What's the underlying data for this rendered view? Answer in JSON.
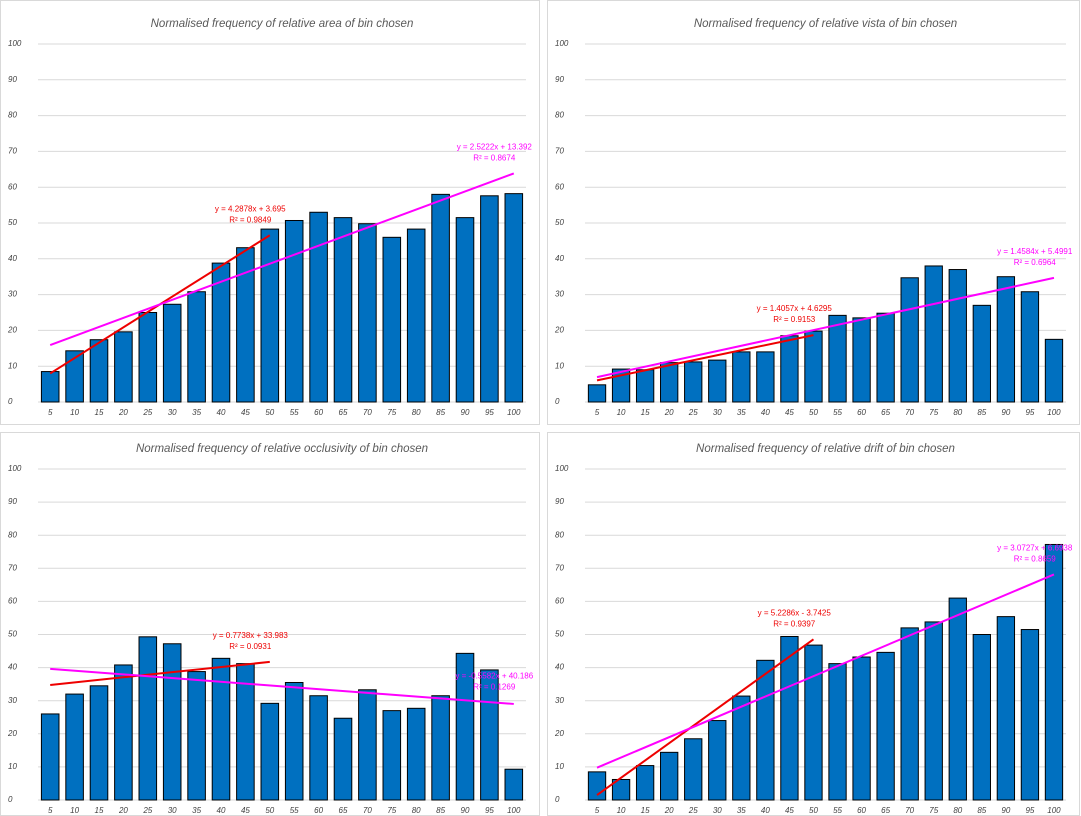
{
  "chart_data": [
    {
      "type": "bar",
      "title": "Normalised frequency of relative area of bin chosen",
      "categories": [
        "5",
        "10",
        "15",
        "20",
        "25",
        "30",
        "35",
        "40",
        "45",
        "50",
        "55",
        "60",
        "65",
        "70",
        "75",
        "80",
        "85",
        "90",
        "95",
        "100"
      ],
      "values": [
        8.5,
        14.3,
        17.4,
        19.6,
        25,
        27.3,
        30.8,
        38.8,
        43.1,
        48.3,
        50.7,
        53,
        51.5,
        49.8,
        46,
        48.3,
        58,
        51.5,
        57.6,
        58.2
      ],
      "color": "#0070c0",
      "ylim": [
        0,
        100
      ],
      "yticks": [
        0,
        10,
        20,
        30,
        40,
        50,
        60,
        70,
        80,
        90,
        100
      ],
      "grid": true,
      "trendlines": [
        {
          "color": "#ee0000",
          "slope": 4.2878,
          "intercept": 3.695,
          "span": [
            1,
            10
          ],
          "equation": "y = 4.2878x + 3.695",
          "r2": "R² = 0.9849"
        },
        {
          "color": "#ff00ff",
          "slope": 2.5222,
          "intercept": 13.392,
          "span": [
            1,
            20
          ],
          "equation": "y = 2.5222x + 13.392",
          "r2": "R² = 0.8674"
        }
      ]
    },
    {
      "type": "bar",
      "title": "Normalised frequency of relative vista of bin chosen",
      "categories": [
        "5",
        "10",
        "15",
        "20",
        "25",
        "30",
        "35",
        "40",
        "45",
        "50",
        "55",
        "60",
        "65",
        "70",
        "75",
        "80",
        "85",
        "90",
        "95",
        "100"
      ],
      "values": [
        4.8,
        9.2,
        9,
        11,
        11.2,
        11.7,
        14,
        14,
        18.5,
        19.8,
        24.2,
        23.5,
        24.8,
        34.7,
        38,
        37,
        27,
        35,
        30.8,
        17.5
      ],
      "color": "#0070c0",
      "ylim": [
        0,
        100
      ],
      "yticks": [
        0,
        10,
        20,
        30,
        40,
        50,
        60,
        70,
        80,
        90,
        100
      ],
      "grid": true,
      "trendlines": [
        {
          "color": "#ee0000",
          "slope": 1.4057,
          "intercept": 4.6295,
          "span": [
            1,
            10
          ],
          "equation": "y = 1.4057x + 4.6295",
          "r2": "R² = 0.9153"
        },
        {
          "color": "#ff00ff",
          "slope": 1.4584,
          "intercept": 5.4991,
          "span": [
            1,
            20
          ],
          "equation": "y = 1.4584x + 5.4991",
          "r2": "R² = 0.6964"
        }
      ]
    },
    {
      "type": "bar",
      "title": "Normalised frequency of relative occlusivity of bin chosen",
      "categories": [
        "5",
        "10",
        "15",
        "20",
        "25",
        "30",
        "35",
        "40",
        "45",
        "50",
        "55",
        "60",
        "65",
        "70",
        "75",
        "80",
        "85",
        "90",
        "95",
        "100"
      ],
      "values": [
        26,
        32,
        34.5,
        40.8,
        49.3,
        47.2,
        38.8,
        42.8,
        41.2,
        29.2,
        35.5,
        31.5,
        24.7,
        33.3,
        27,
        27.7,
        31.5,
        44.3,
        39.3,
        9.3
      ],
      "color": "#0070c0",
      "ylim": [
        0,
        100
      ],
      "yticks": [
        0,
        10,
        20,
        30,
        40,
        50,
        60,
        70,
        80,
        90,
        100
      ],
      "grid": true,
      "trendlines": [
        {
          "color": "#ee0000",
          "slope": 0.7738,
          "intercept": 33.983,
          "span": [
            1,
            10
          ],
          "equation": "y = 0.7738x + 33.983",
          "r2": "R² = 0.0931"
        },
        {
          "color": "#ff00ff",
          "slope": -0.5582,
          "intercept": 40.186,
          "span": [
            1,
            20
          ],
          "equation": "y = -0.5582x + 40.186",
          "r2": "R² = 0.1269"
        }
      ]
    },
    {
      "type": "bar",
      "title": "Normalised frequency of relative drift of bin chosen",
      "categories": [
        "5",
        "10",
        "15",
        "20",
        "25",
        "30",
        "35",
        "40",
        "45",
        "50",
        "55",
        "60",
        "65",
        "70",
        "75",
        "80",
        "85",
        "90",
        "95",
        "100"
      ],
      "values": [
        8.5,
        6.2,
        10.4,
        14.4,
        18.5,
        24,
        31.4,
        42.2,
        49.4,
        46.8,
        41.2,
        43.2,
        44.6,
        52,
        53.8,
        61,
        50,
        55.4,
        51.5,
        77.2
      ],
      "color": "#0070c0",
      "ylim": [
        0,
        100
      ],
      "yticks": [
        0,
        10,
        20,
        30,
        40,
        50,
        60,
        70,
        80,
        90,
        100
      ],
      "grid": true,
      "trendlines": [
        {
          "color": "#ee0000",
          "slope": 5.2286,
          "intercept": -3.7425,
          "span": [
            1,
            10
          ],
          "equation": "y = 5.2286x - 3.7425",
          "r2": "R² = 0.9397"
        },
        {
          "color": "#ff00ff",
          "slope": 3.0727,
          "intercept": 6.6938,
          "span": [
            1,
            20
          ],
          "equation": "y = 3.0727x + 6.6938",
          "r2": "R² = 0.8659"
        }
      ]
    }
  ]
}
